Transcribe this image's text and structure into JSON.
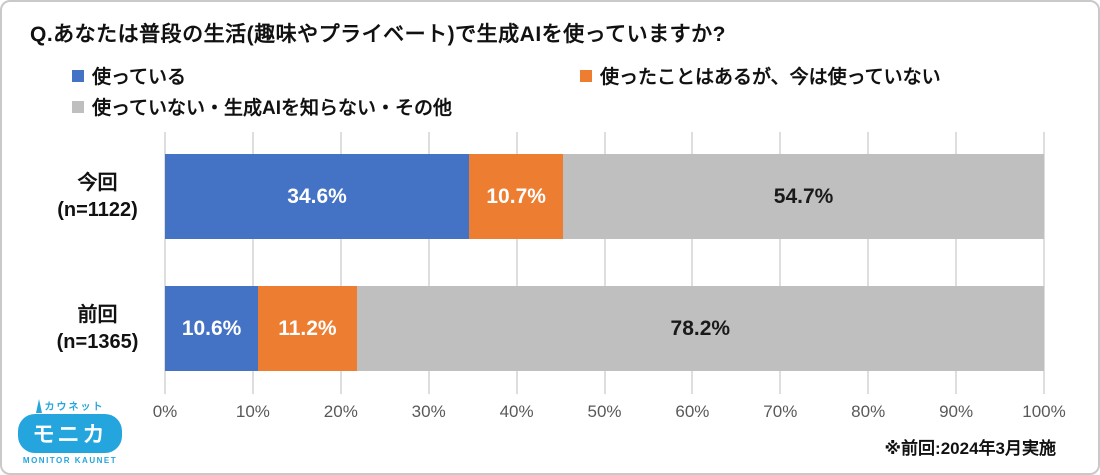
{
  "header": {
    "title": "Q.あなたは普段の生活(趣味やプライベート)で生成AIを使っていますか?"
  },
  "chart_data": {
    "type": "bar",
    "orientation": "horizontal-stacked",
    "title": "Q.あなたは普段の生活(趣味やプライベート)で生成AIを使っていますか?",
    "categories": [
      {
        "label": "今回",
        "n_label": "(n=1122)"
      },
      {
        "label": "前回",
        "n_label": "(n=1365)"
      }
    ],
    "series": [
      {
        "name": "使っている",
        "color": "#4472C4",
        "label_color": "#ffffff",
        "values": [
          34.6,
          10.6
        ]
      },
      {
        "name": "使ったことはあるが、今は使っていない",
        "color": "#ED7D31",
        "label_color": "#ffffff",
        "values": [
          10.7,
          11.2
        ]
      },
      {
        "name": "使っていない・生成AIを知らない・その他",
        "color": "#BFBFBF",
        "label_color": "#1a1a1a",
        "values": [
          54.7,
          78.2
        ]
      }
    ],
    "x_ticks": [
      "0%",
      "10%",
      "20%",
      "30%",
      "40%",
      "50%",
      "60%",
      "70%",
      "80%",
      "90%",
      "100%"
    ],
    "xlim": [
      0,
      100
    ],
    "grid": true,
    "legend_position": "top",
    "value_suffix": "%"
  },
  "footnote": "※前回:2024年3月実施",
  "logo": {
    "top_text": "カウネット",
    "main_text": "モニカ",
    "bottom_text": "MONITOR KAUNET",
    "color": "#25a5dd"
  },
  "colors": {
    "grid_line": "#dedede",
    "axis_text": "#595959",
    "border": "#c9c9c9"
  }
}
